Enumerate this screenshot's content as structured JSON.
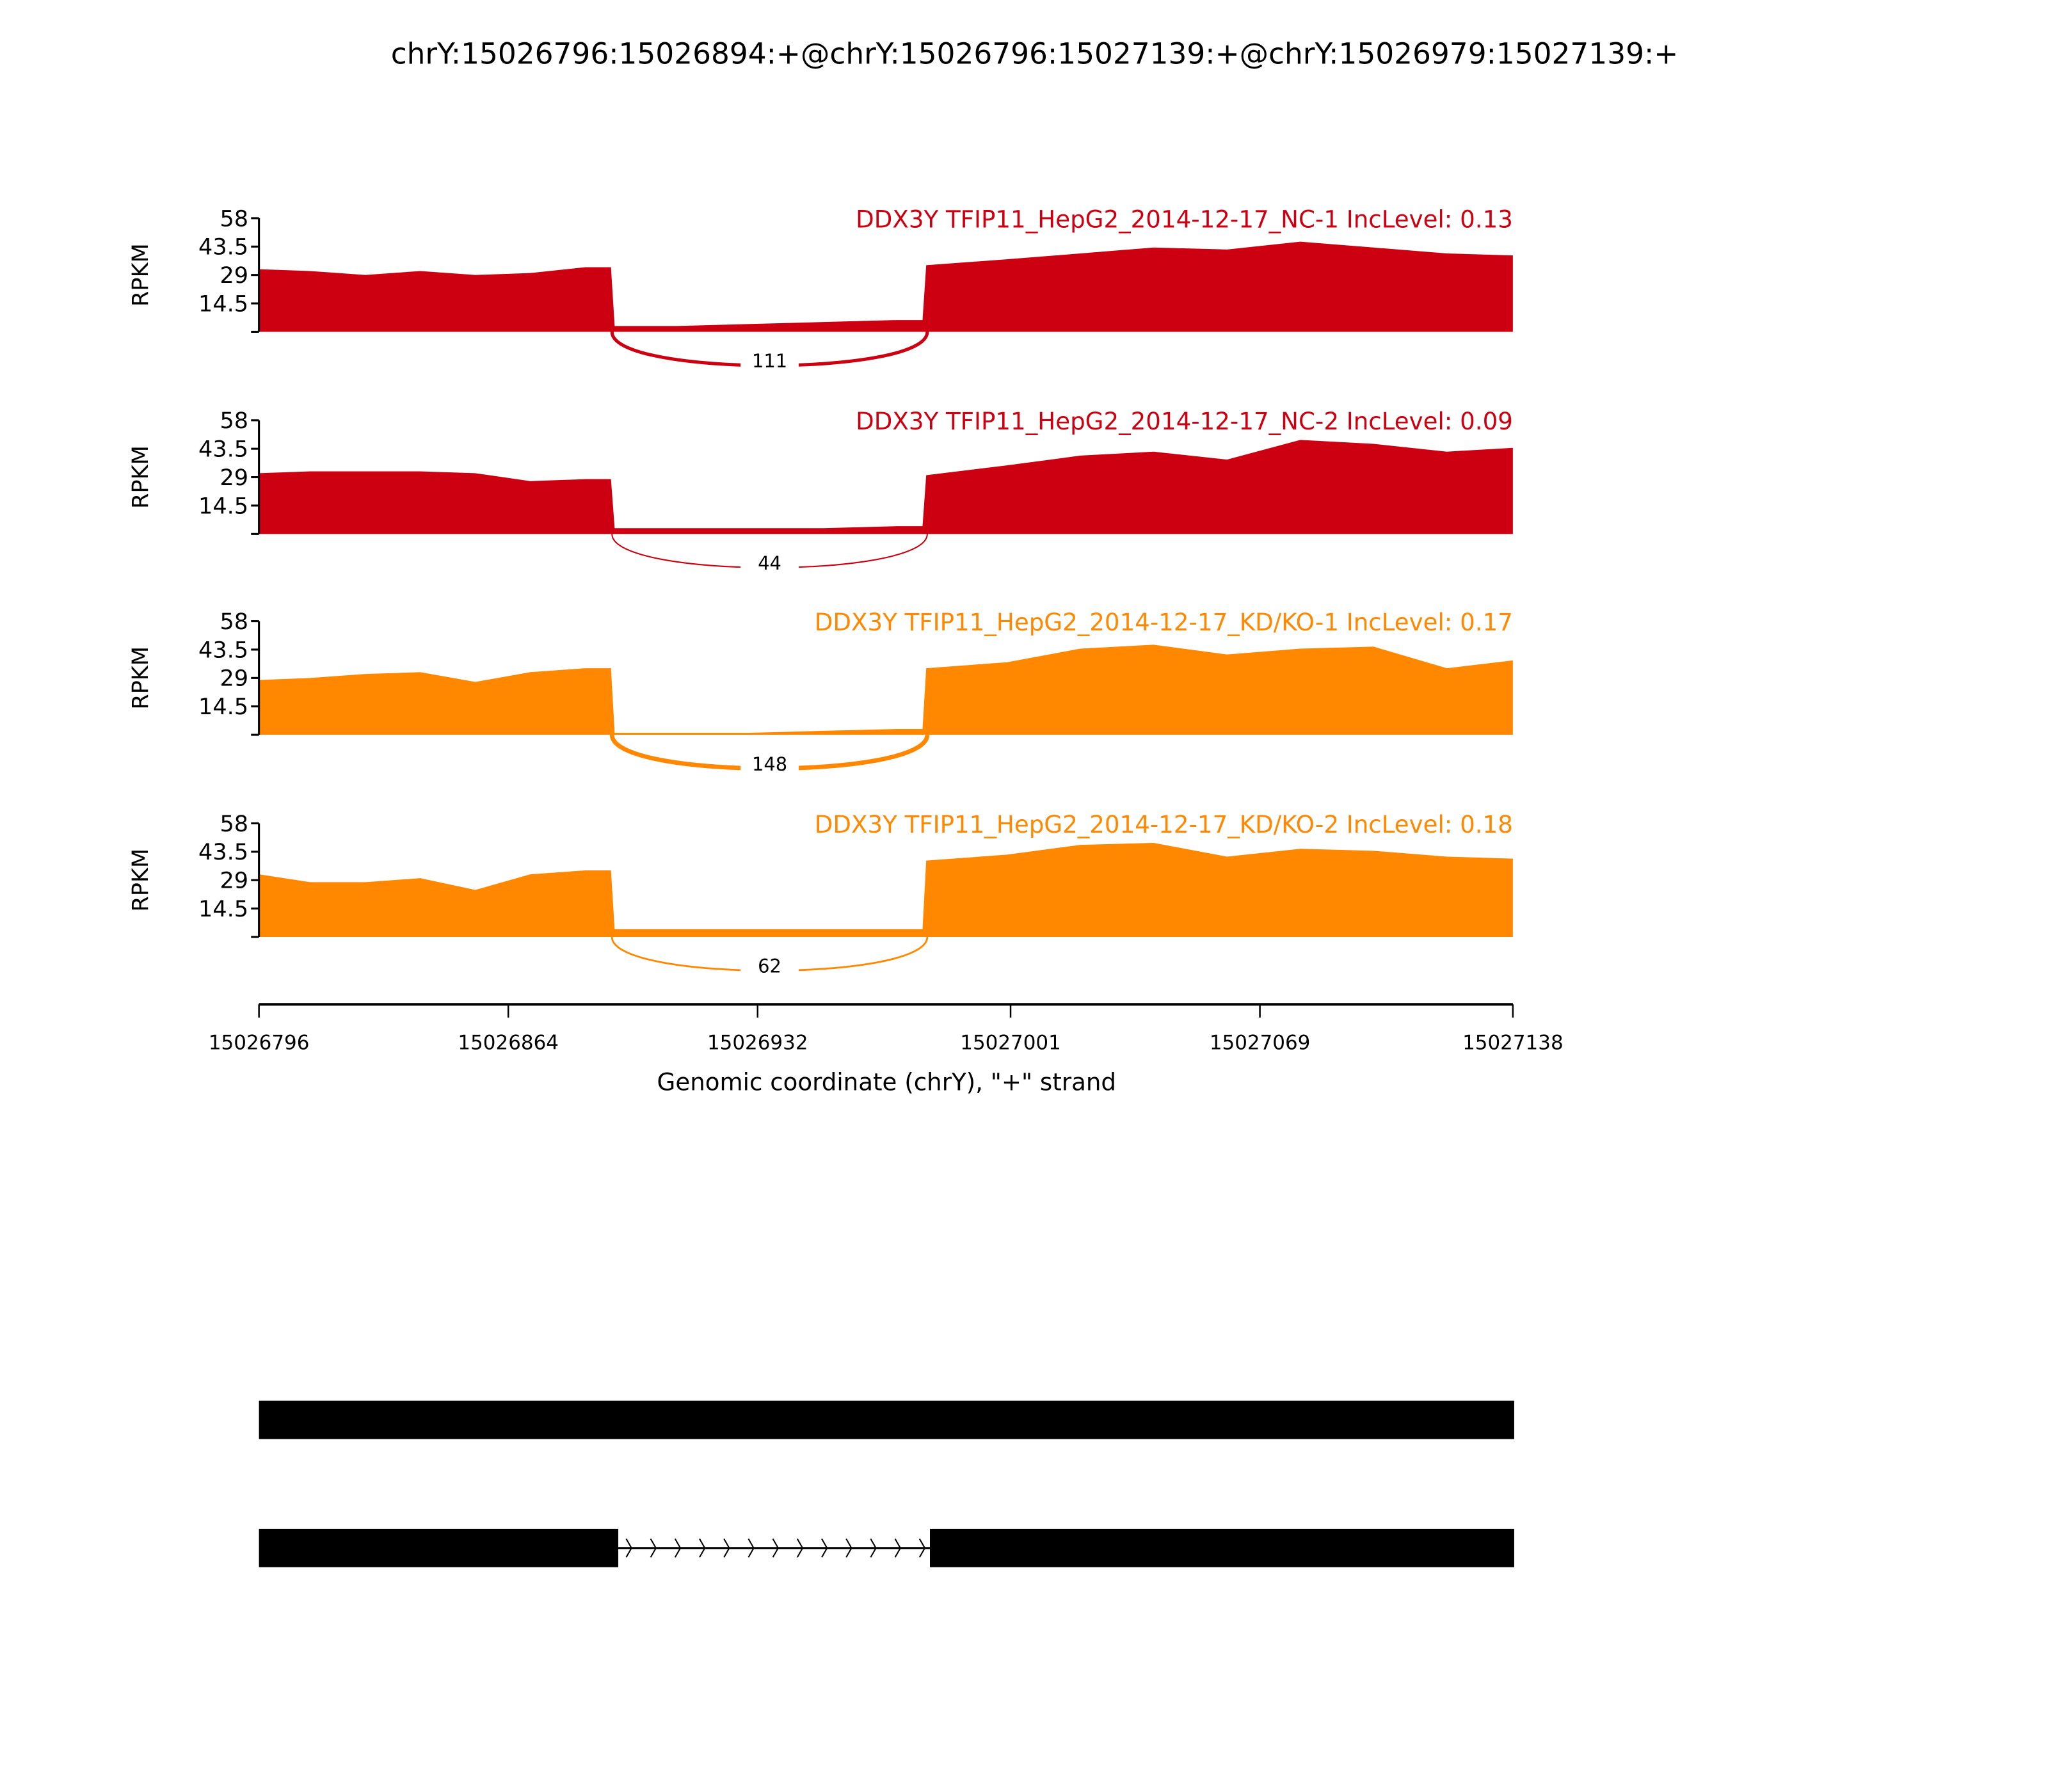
{
  "chart_data": {
    "type": "area",
    "title": "chrY:15026796:15026894:+@chrY:15026796:15027139:+@chrY:15026979:15027139:+",
    "xlabel": "Genomic coordinate (chrY), \"+\" strand",
    "ylabel": "RPKM",
    "xlim": [
      15026796,
      15027138
    ],
    "xticks": [
      "15026796",
      "15026864",
      "15026932",
      "15027001",
      "15027069",
      "15027138"
    ],
    "xtick_values": [
      15026796,
      15026864,
      15026932,
      15027001,
      15027069,
      15027138
    ],
    "ylim": [
      0,
      58
    ],
    "yticks": [
      "58",
      "43.5",
      "29",
      "14.5"
    ],
    "ytick_values": [
      58,
      43.5,
      29,
      14.5,
      0
    ],
    "coverage_x": [
      15026796,
      15026810,
      15026825,
      15026840,
      15026855,
      15026870,
      15026885,
      15026892,
      15026893,
      15026910,
      15026930,
      15026950,
      15026970,
      15026977,
      15026978,
      15027000,
      15027020,
      15027040,
      15027060,
      15027080,
      15027100,
      15027120,
      15027138
    ],
    "series": [
      {
        "name": "DDX3Y TFIP11_HepG2_2014-12-17_NC-1 IncLevel: 0.13",
        "color": "#cc0011",
        "values": [
          32,
          31,
          29,
          31,
          29,
          30,
          33,
          33,
          3,
          3,
          4,
          5,
          6,
          6,
          34,
          37,
          40,
          43,
          42,
          46,
          43,
          40,
          39
        ],
        "junction": {
          "start": 15026893,
          "end": 15026979,
          "count": "111"
        }
      },
      {
        "name": "DDX3Y TFIP11_HepG2_2014-12-17_NC-2 IncLevel: 0.09",
        "color": "#cc0011",
        "values": [
          31,
          32,
          32,
          32,
          31,
          27,
          28,
          28,
          3,
          3,
          3,
          3,
          4,
          4,
          30,
          35,
          40,
          42,
          38,
          48,
          46,
          42,
          44
        ],
        "junction": {
          "start": 15026893,
          "end": 15026979,
          "count": "44"
        }
      },
      {
        "name": "DDX3Y TFIP11_HepG2_2014-12-17_KD/KO-1 IncLevel: 0.17",
        "color": "#ff8800",
        "values": [
          28,
          29,
          31,
          32,
          27,
          32,
          34,
          34,
          1,
          1,
          1,
          2,
          3,
          3,
          34,
          37,
          44,
          46,
          41,
          44,
          45,
          34,
          38
        ],
        "junction": {
          "start": 15026893,
          "end": 15026979,
          "count": "148"
        }
      },
      {
        "name": "DDX3Y TFIP11_HepG2_2014-12-17_KD/KO-2 IncLevel: 0.18",
        "color": "#ff8800",
        "values": [
          32,
          28,
          28,
          30,
          24,
          32,
          34,
          34,
          4,
          4,
          4,
          4,
          4,
          4,
          39,
          42,
          47,
          48,
          41,
          45,
          44,
          41,
          40
        ],
        "junction": {
          "start": 15026893,
          "end": 15026979,
          "count": "62"
        }
      }
    ],
    "gene_models": [
      {
        "exons": [
          [
            15026796,
            15027139
          ]
        ]
      },
      {
        "exons": [
          [
            15026796,
            15026894
          ],
          [
            15026979,
            15027139
          ]
        ]
      }
    ]
  }
}
